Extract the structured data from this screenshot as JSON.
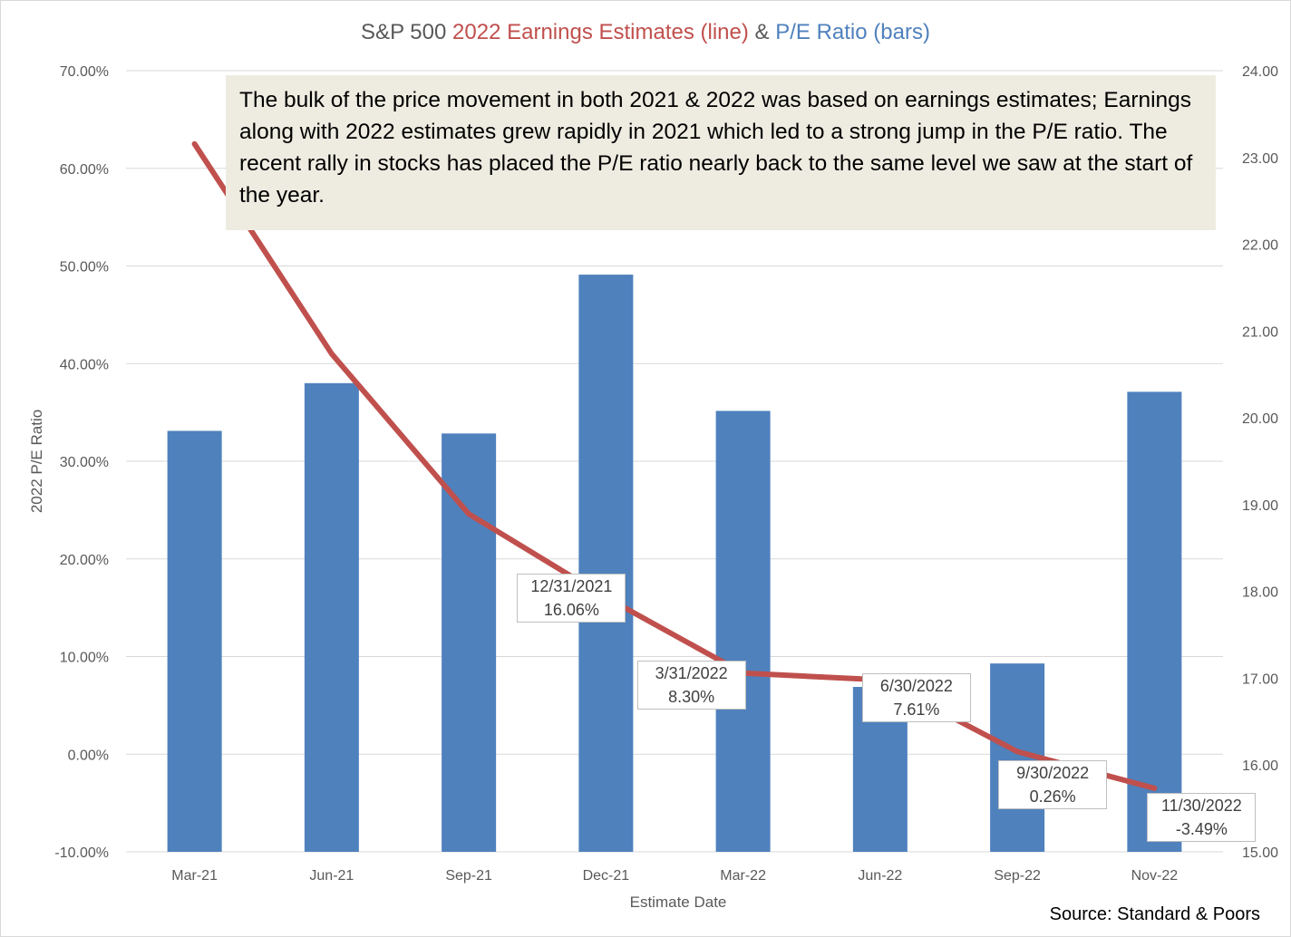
{
  "chart_data": {
    "type": "bar+line",
    "title_parts": {
      "lead": "S&P 500",
      "line_part": "2022 Earnings Estimates (line)",
      "amp": "&",
      "bar_part": "P/E Ratio (bars)"
    },
    "xlabel": "Estimate Date",
    "ylabel": "2022 P/E Ratio",
    "categories": [
      "Mar-21",
      "Jun-21",
      "Sep-21",
      "Dec-21",
      "Mar-22",
      "Jun-22",
      "Sep-22",
      "Nov-22"
    ],
    "left_axis": {
      "min": -10,
      "max": 70,
      "step": 10,
      "ticks": [
        "-10.00%",
        "0.00%",
        "10.00%",
        "20.00%",
        "30.00%",
        "40.00%",
        "50.00%",
        "60.00%",
        "70.00%"
      ]
    },
    "right_axis": {
      "min": 15,
      "max": 24,
      "step": 1,
      "ticks": [
        "15.00",
        "16.00",
        "17.00",
        "18.00",
        "19.00",
        "20.00",
        "21.00",
        "22.00",
        "23.00",
        "24.00"
      ]
    },
    "series": [
      {
        "name": "P/E Ratio",
        "type": "bar",
        "axis": "right",
        "color": "#4f81bd",
        "values": [
          19.85,
          20.4,
          19.82,
          21.65,
          20.08,
          16.9,
          17.17,
          20.3
        ]
      },
      {
        "name": "2022 Earnings Estimates",
        "type": "line",
        "axis": "left",
        "color": "#c0504d",
        "values": [
          62.5,
          41.0,
          24.6,
          16.06,
          8.3,
          7.61,
          0.26,
          -3.49
        ]
      }
    ],
    "data_labels": [
      {
        "index": 3,
        "date": "12/31/2021",
        "value": "16.06%"
      },
      {
        "index": 4,
        "date": "3/31/2022",
        "value": "8.30%"
      },
      {
        "index": 5,
        "date": "6/30/2022",
        "value": "7.61%"
      },
      {
        "index": 6,
        "date": "9/30/2022",
        "value": "0.26%"
      },
      {
        "index": 7,
        "date": "11/30/2022",
        "value": "-3.49%"
      }
    ],
    "annotation": "The bulk of the price movement in both 2021 & 2022 was based on earnings estimates; Earnings along with 2022 estimates grew rapidly in 2021 which led to a strong jump in the P/E ratio. The recent rally in stocks has placed the P/E ratio nearly back to the same level we saw at the start of the year.",
    "source": "Source: Standard & Poors",
    "grid": true,
    "legend": "none"
  }
}
